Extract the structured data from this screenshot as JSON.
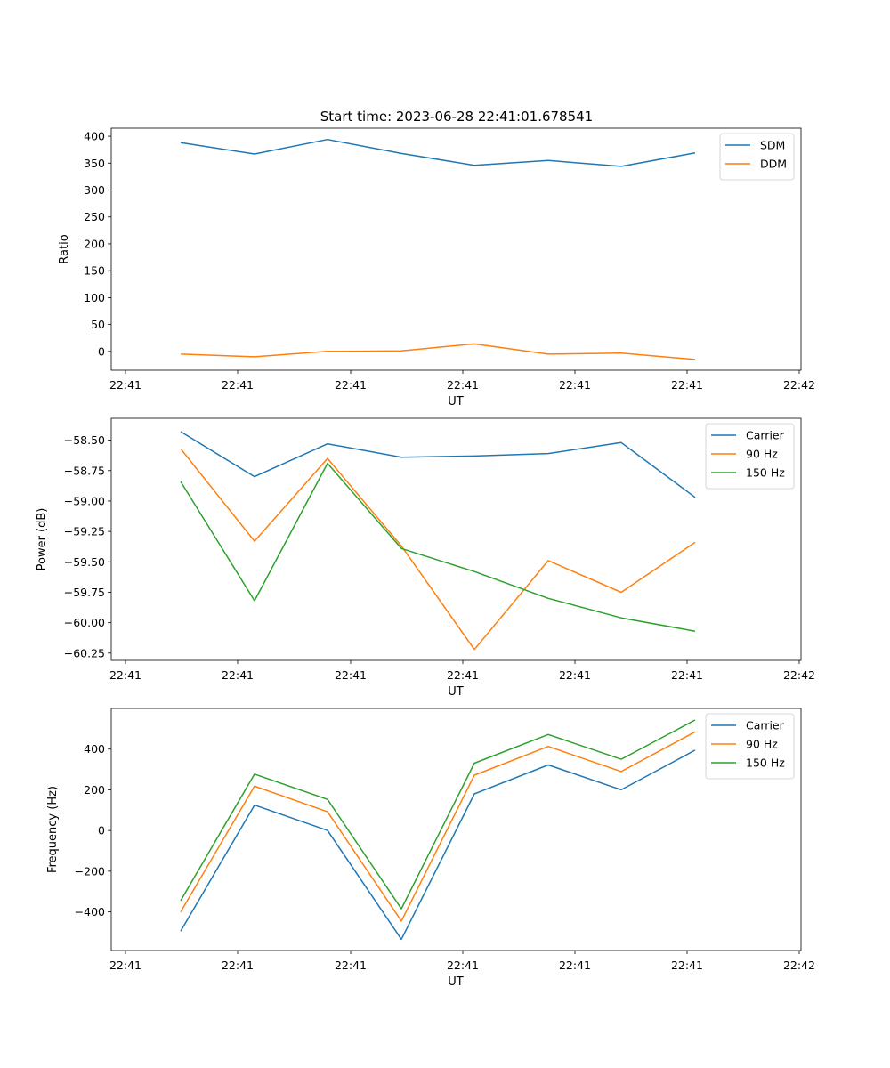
{
  "figure_title": "Start time: 2023-06-28 22:41:01.678541",
  "colors": {
    "blue": "#1f77b4",
    "orange": "#ff7f0e",
    "green": "#2ca02c"
  },
  "chart_data": [
    {
      "type": "line",
      "title": "Start time: 2023-06-28 22:41:01.678541",
      "xlabel": "UT",
      "ylabel": "Ratio",
      "xticks": [
        "22:41",
        "22:41",
        "22:41",
        "22:41",
        "22:41",
        "22:41",
        "22:42"
      ],
      "yticks": [
        0,
        50,
        100,
        150,
        200,
        250,
        300,
        350,
        400
      ],
      "ytick_labels": [
        "0",
        "50",
        "100",
        "150",
        "200",
        "250",
        "300",
        "350",
        "400"
      ],
      "ylim": [
        -35,
        415
      ],
      "legend_position": "upper right",
      "series": [
        {
          "name": "SDM",
          "color": "#1f77b4",
          "values": [
            388,
            367,
            394,
            368,
            346,
            355,
            344,
            369
          ]
        },
        {
          "name": "DDM",
          "color": "#ff7f0e",
          "values": [
            -5,
            -10,
            0,
            1,
            14,
            -5,
            -3,
            -15
          ]
        }
      ]
    },
    {
      "type": "line",
      "xlabel": "UT",
      "ylabel": "Power (dB)",
      "xticks": [
        "22:41",
        "22:41",
        "22:41",
        "22:41",
        "22:41",
        "22:41",
        "22:42"
      ],
      "yticks": [
        -60.25,
        -60.0,
        -59.75,
        -59.5,
        -59.25,
        -59.0,
        -58.75,
        -58.5
      ],
      "ytick_labels": [
        "−60.25",
        "−60.00",
        "−59.75",
        "−59.50",
        "−59.25",
        "−59.00",
        "−58.75",
        "−58.50"
      ],
      "ylim": [
        -60.31,
        -58.32
      ],
      "legend_position": "upper right",
      "series": [
        {
          "name": "Carrier",
          "color": "#1f77b4",
          "values": [
            -58.43,
            -58.8,
            -58.53,
            -58.64,
            -58.63,
            -58.61,
            -58.52,
            -58.97
          ]
        },
        {
          "name": "90 Hz",
          "color": "#ff7f0e",
          "values": [
            -58.57,
            -59.33,
            -58.65,
            -59.37,
            -60.22,
            -59.49,
            -59.75,
            -59.34
          ]
        },
        {
          "name": "150 Hz",
          "color": "#2ca02c",
          "values": [
            -58.84,
            -59.82,
            -58.69,
            -59.39,
            -59.58,
            -59.8,
            -59.96,
            -60.07
          ]
        }
      ]
    },
    {
      "type": "line",
      "xlabel": "UT",
      "ylabel": "Frequency (Hz)",
      "xticks": [
        "22:41",
        "22:41",
        "22:41",
        "22:41",
        "22:41",
        "22:41",
        "22:42"
      ],
      "yticks": [
        -400,
        -200,
        0,
        200,
        400
      ],
      "ytick_labels": [
        "−400",
        "−200",
        "0",
        "200",
        "400"
      ],
      "ylim": [
        -590,
        600
      ],
      "legend_position": "upper right",
      "series": [
        {
          "name": "Carrier",
          "color": "#1f77b4",
          "values": [
            -495,
            125,
            0,
            -535,
            180,
            322,
            200,
            395
          ]
        },
        {
          "name": "90 Hz",
          "color": "#ff7f0e",
          "values": [
            -400,
            218,
            92,
            -445,
            272,
            413,
            290,
            485
          ]
        },
        {
          "name": "150 Hz",
          "color": "#2ca02c",
          "values": [
            -345,
            277,
            153,
            -385,
            331,
            472,
            350,
            543
          ]
        }
      ]
    }
  ]
}
